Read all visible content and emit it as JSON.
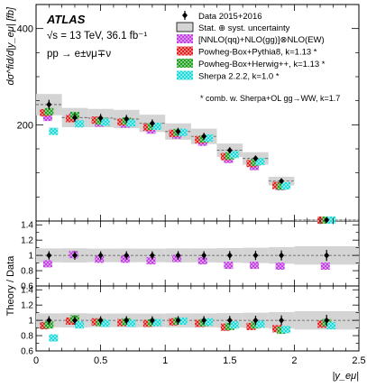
{
  "chart_data": {
    "type": "scatter",
    "experiment": "ATLAS",
    "energy_text": "√s = 13 TeV, 36.1 fb⁻¹",
    "process_text": "pp → e±νμ∓ν",
    "ylabel_main": "dσ^fid/d|y_eμ| [fb]",
    "ylabel_ratio": "Theory / Data",
    "xlabel": "|y_eμ|",
    "xlim": [
      0,
      2.5
    ],
    "ylim_main": [
      0,
      450
    ],
    "ylim_ratio": [
      0.6,
      1.45
    ],
    "x_ticks": [
      "0",
      "0.5",
      "1",
      "1.5",
      "2",
      "2.5"
    ],
    "y_ticks_main": [
      "200",
      "400"
    ],
    "y_ticks_ratio": [
      "0.6",
      "0.8",
      "1",
      "1.2",
      "1.4"
    ],
    "bin_edges": [
      0,
      0.2,
      0.4,
      0.6,
      0.8,
      1.0,
      1.2,
      1.4,
      1.6,
      1.8,
      2.0,
      2.5
    ],
    "data": {
      "name": "Data 2015+2016",
      "values": [
        242,
        215,
        214,
        212,
        203,
        186,
        176,
        147,
        130,
        83,
        2
      ],
      "uncertainty": [
        22,
        20,
        19,
        19,
        18,
        17,
        16,
        14,
        13,
        9,
        1
      ]
    },
    "uncertainty_label": "Stat. ⊕ syst. uncertainty",
    "series": [
      {
        "name": "[NNLO(qq)+NLO(gg)]⊗NLO(EW)",
        "color": "#c040e0",
        "ratio_panel": 1,
        "ratio": [
          0.89,
          1.01,
          0.95,
          0.95,
          0.93,
          0.96,
          0.93,
          0.87,
          0.87,
          0.86,
          0.86
        ]
      },
      {
        "name": "Powheg-Box+Pythia8, k=1.13 *",
        "color": "#e02020",
        "ratio_panel": 2,
        "ratio": [
          0.93,
          0.99,
          0.98,
          0.97,
          0.96,
          0.98,
          0.96,
          0.91,
          0.92,
          0.89,
          0.95
        ]
      },
      {
        "name": "Powheg-Box+Herwig++, k=1.13 *",
        "color": "#22a022",
        "ratio_panel": 2,
        "ratio": [
          0.94,
          1.02,
          0.97,
          0.98,
          0.97,
          0.99,
          0.97,
          0.92,
          0.94,
          0.87,
          0.97
        ]
      },
      {
        "name": "Sherpa 2.2.2, k=1.0 *",
        "color": "#20d8d8",
        "ratio_panel": 2,
        "ratio": [
          0.77,
          0.94,
          0.96,
          0.96,
          0.97,
          0.99,
          0.98,
          0.94,
          0.95,
          0.88,
          0.93
        ]
      }
    ],
    "footnote": "* comb. w. Sherpa+OL gg→WW, k=1.7",
    "legend_position": "top-right"
  }
}
